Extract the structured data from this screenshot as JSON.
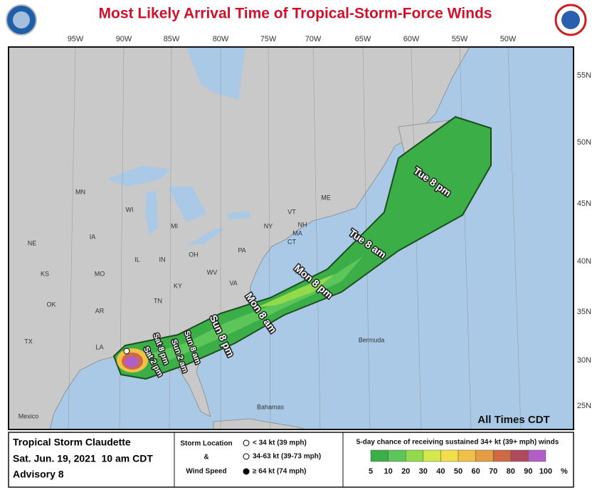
{
  "header": {
    "title": "Most Likely Arrival Time of Tropical-Storm-Force Winds"
  },
  "map": {
    "longitudes": [
      "95W",
      "90W",
      "85W",
      "80W",
      "75W",
      "70W",
      "65W",
      "60W",
      "55W",
      "50W"
    ],
    "latitudes": [
      "55N",
      "50N",
      "45N",
      "40N",
      "35N",
      "30N",
      "25N"
    ],
    "places": [
      "MN",
      "WI",
      "MI",
      "IA",
      "NE",
      "IL",
      "IN",
      "OH",
      "PA",
      "NY",
      "VT",
      "NH",
      "ME",
      "MA",
      "CT",
      "KS",
      "MO",
      "KY",
      "WV",
      "VA",
      "OK",
      "AR",
      "TN",
      "TX",
      "LA",
      "Mexico",
      "Bermuda",
      "Bahamas"
    ],
    "arrival_times": [
      "Tue 8 pm",
      "Tue 8 am",
      "Mon 8 pm",
      "Mon 8 am",
      "Sun 8 pm",
      "Sun 8 am",
      "Sun 2 am",
      "Sat 8 pm",
      "Sat 2 pm"
    ],
    "time_zone_note": "All Times CDT"
  },
  "legend": {
    "storm_name": "Tropical Storm Claudette",
    "date": "Sat. Jun. 19, 2021  10 am CDT",
    "advisory": "Advisory 8",
    "symbol_title": [
      "Storm Location",
      "&",
      "Wind Speed"
    ],
    "symbols": [
      "< 34 kt (39 mph)",
      "34-63 kt (39-73 mph)",
      "≥ 64 kt (74 mph)"
    ],
    "scale_title": "5-day chance of receiving sustained 34+ kt (39+ mph) winds",
    "scale_labels": [
      5,
      10,
      20,
      30,
      40,
      50,
      60,
      70,
      80,
      90,
      100
    ],
    "scale_unit": "%",
    "scale_colors": [
      "#3cae48",
      "#5cc65a",
      "#92da4c",
      "#d3e84a",
      "#f2df49",
      "#f1c049",
      "#e59c42",
      "#cd6a42",
      "#ad4a5c",
      "#b35ec6"
    ]
  }
}
